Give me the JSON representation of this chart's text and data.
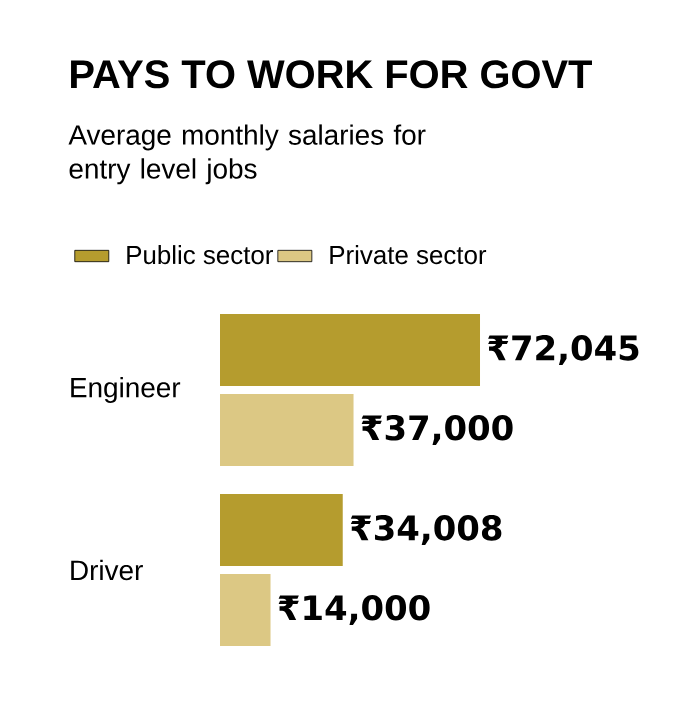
{
  "chart_data": {
    "type": "bar",
    "orientation": "horizontal",
    "title": "PAYS TO WORK FOR GOVT",
    "subtitle": "Average monthly salaries for entry level jobs",
    "categories": [
      "Engineer",
      "Driver"
    ],
    "series": [
      {
        "name": "Public sector",
        "color": "#b59c2e",
        "values": [
          72045,
          34008
        ],
        "value_labels": [
          "₹72,045",
          "₹34,008"
        ]
      },
      {
        "name": "Private sector",
        "color": "#dcc884",
        "values": [
          37000,
          14000
        ],
        "value_labels": [
          "₹37,000",
          "₹14,000"
        ]
      }
    ],
    "legend": "top left"
  }
}
